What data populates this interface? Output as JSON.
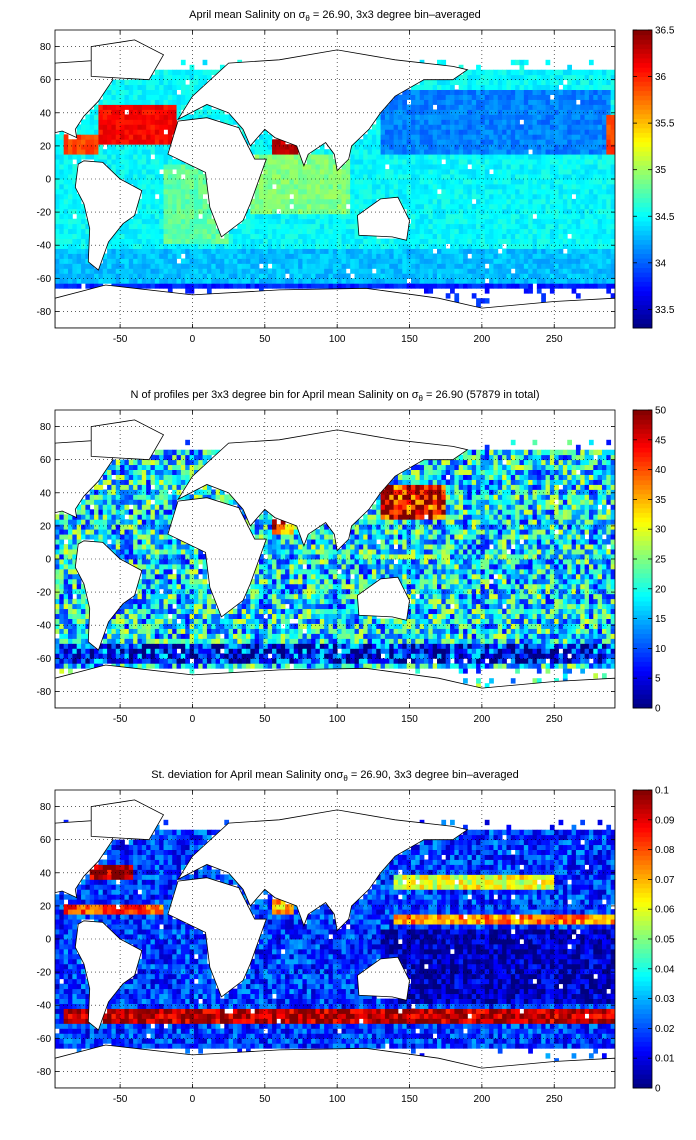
{
  "chart_data": [
    {
      "type": "heatmap",
      "title": "April mean Salinity on σθ = 26.90, 3x3 degree bin–averaged",
      "title_parts": {
        "pre": "April mean Salinity on σ",
        "sub": "θ",
        "post": " = 26.90, 3x3 degree bin–averaged"
      },
      "xlabel": "",
      "ylabel": "",
      "xlim": [
        -95,
        292
      ],
      "ylim": [
        -90,
        90
      ],
      "xticks": [
        -50,
        0,
        50,
        100,
        150,
        200,
        250
      ],
      "yticks": [
        -80,
        -60,
        -40,
        -20,
        0,
        20,
        40,
        60,
        80
      ],
      "grid": true,
      "colorbar": {
        "range": [
          33.3,
          36.5
        ],
        "ticks": [
          33.5,
          34,
          34.5,
          35,
          35.5,
          36,
          36.5
        ],
        "colormap": "jet"
      },
      "bin_size_deg": 3,
      "seed": 11,
      "regions": [
        {
          "lon": [
            -65,
            -10
          ],
          "lat": [
            20,
            45
          ],
          "value": 36.1
        },
        {
          "lon": [
            -90,
            -65
          ],
          "lat": [
            15,
            28
          ],
          "value": 35.9
        },
        {
          "lon": [
            285,
            292
          ],
          "lat": [
            15,
            40
          ],
          "value": 35.9
        },
        {
          "lon": [
            55,
            75
          ],
          "lat": [
            15,
            25
          ],
          "value": 36.3
        },
        {
          "lon": [
            -20,
            25
          ],
          "lat": [
            -40,
            10
          ],
          "value": 34.8
        },
        {
          "lon": [
            40,
            110
          ],
          "lat": [
            -20,
            15
          ],
          "value": 34.9
        },
        {
          "lon": [
            130,
            290
          ],
          "lat": [
            15,
            55
          ],
          "value": 34.1
        },
        {
          "lon": [
            -95,
            292
          ],
          "lat": [
            -62,
            -42
          ],
          "value": 34.3
        },
        {
          "lon": [
            -95,
            292
          ],
          "lat": [
            -90,
            -62
          ],
          "value": 33.8
        }
      ],
      "default_value": 34.5,
      "noise": 0.12
    },
    {
      "type": "heatmap",
      "title": "N of profiles per 3x3 degree bin for April mean Salinity on σθ = 26.90 (57879 in total)",
      "title_parts": {
        "pre": "N of profiles per 3x3 degree bin for April mean Salinity on σ",
        "sub": "θ",
        "post": " = 26.90 (57879 in total)"
      },
      "total_profiles": 57879,
      "xlabel": "",
      "ylabel": "",
      "xlim": [
        -95,
        292
      ],
      "ylim": [
        -90,
        90
      ],
      "xticks": [
        -50,
        0,
        50,
        100,
        150,
        200,
        250
      ],
      "yticks": [
        -80,
        -60,
        -40,
        -20,
        0,
        20,
        40,
        60,
        80
      ],
      "grid": true,
      "colorbar": {
        "range": [
          0,
          50
        ],
        "ticks": [
          0,
          5,
          10,
          15,
          20,
          25,
          30,
          35,
          40,
          45,
          50
        ],
        "colormap": "jet"
      },
      "bin_size_deg": 3,
      "seed": 23,
      "regions": [
        {
          "lon": [
            130,
            175
          ],
          "lat": [
            25,
            45
          ],
          "value": 45
        },
        {
          "lon": [
            55,
            70
          ],
          "lat": [
            15,
            25
          ],
          "value": 42
        },
        {
          "lon": [
            -95,
            292
          ],
          "lat": [
            -62,
            -50
          ],
          "value": 7
        }
      ],
      "default_value": 18,
      "noise": 12
    },
    {
      "type": "heatmap",
      "title": "St. deviation for April mean Salinity onσθ = 26.90, 3x3 degree bin–averaged",
      "title_parts": {
        "pre": "St. deviation for April mean Salinity on",
        "sub": "θ",
        "post": " = 26.90, 3x3 degree bin–averaged",
        "sigma": "σ"
      },
      "xlabel": "",
      "ylabel": "",
      "xlim": [
        -95,
        292
      ],
      "ylim": [
        -90,
        90
      ],
      "xticks": [
        -50,
        0,
        50,
        100,
        150,
        200,
        250
      ],
      "yticks": [
        -80,
        -60,
        -40,
        -20,
        0,
        20,
        40,
        60,
        80
      ],
      "grid": true,
      "colorbar": {
        "range": [
          0,
          0.1
        ],
        "ticks": [
          0,
          0.01,
          0.02,
          0.03,
          0.04,
          0.05,
          0.06,
          0.07,
          0.08,
          0.09,
          0.1
        ],
        "colormap": "jet"
      },
      "bin_size_deg": 3,
      "seed": 37,
      "regions": [
        {
          "lon": [
            -90,
            292
          ],
          "lat": [
            -52,
            -42
          ],
          "value": 0.095
        },
        {
          "lon": [
            -70,
            -40
          ],
          "lat": [
            35,
            45
          ],
          "value": 0.095
        },
        {
          "lon": [
            -90,
            -20
          ],
          "lat": [
            15,
            22
          ],
          "value": 0.08
        },
        {
          "lon": [
            140,
            292
          ],
          "lat": [
            8,
            15
          ],
          "value": 0.075
        },
        {
          "lon": [
            140,
            250
          ],
          "lat": [
            30,
            38
          ],
          "value": 0.06
        },
        {
          "lon": [
            55,
            70
          ],
          "lat": [
            15,
            25
          ],
          "value": 0.07
        },
        {
          "lon": [
            130,
            292
          ],
          "lat": [
            -40,
            5
          ],
          "value": 0.006
        }
      ],
      "default_value": 0.018,
      "noise": 0.012
    }
  ]
}
